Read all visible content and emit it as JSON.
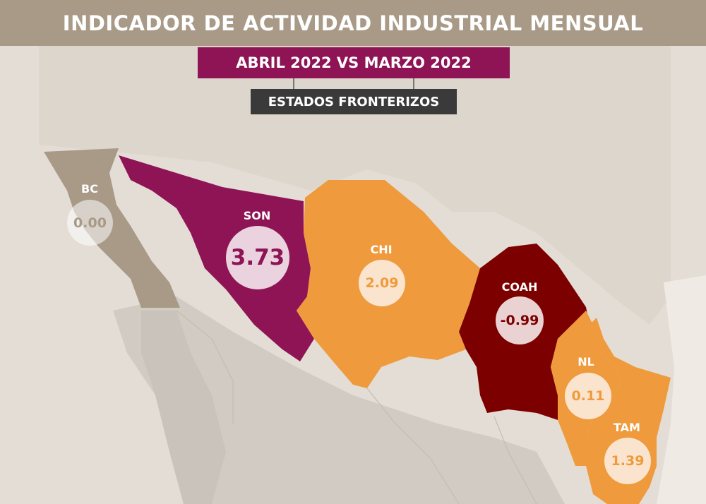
{
  "title": "INDICADOR DE ACTIVIDAD INDUSTRIAL MENSUAL",
  "subtitle": "ABRIL 2022 VS MARZO 2022",
  "tag": "ESTADOS FRONTERIZOS",
  "states": [
    {
      "code": "BC",
      "value": "0.00",
      "color": "#a89a87"
    },
    {
      "code": "SON",
      "value": "3.73",
      "color": "#8e1455"
    },
    {
      "code": "CHI",
      "value": "2.09",
      "color": "#ef9a3c"
    },
    {
      "code": "COAH",
      "value": "-0.99",
      "color": "#7d0000"
    },
    {
      "code": "NL",
      "value": "0.11",
      "color": "#ef9a3c"
    },
    {
      "code": "TAM",
      "value": "1.39",
      "color": "#ef9a3c"
    }
  ],
  "colors": {
    "header": "#a89a87",
    "subtitle": "#8e1455",
    "tag": "#3a3a3a",
    "land": "#d1cbc3",
    "background": "#e3ddd5"
  }
}
